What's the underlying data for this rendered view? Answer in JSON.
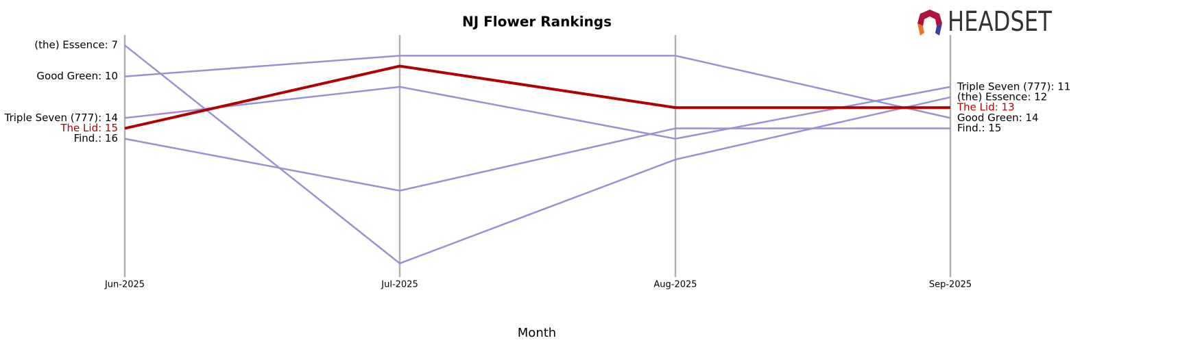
{
  "chart_data": {
    "type": "bump",
    "title": "NJ Flower Rankings",
    "x_label": "Month",
    "logo": "HEADSET",
    "categories": [
      "Jun-2025",
      "Jul-2025",
      "Aug-2025",
      "Sep-2025"
    ],
    "ylim": [
      29,
      6
    ],
    "inverted_y": true,
    "highlight": "The Lid",
    "series": [
      {
        "name": "(the) Essence",
        "color": "#9b8fd8",
        "values": [
          7,
          28,
          18,
          12
        ],
        "value_labels": [
          "(the) Essence: 7",
          null,
          null,
          "(the) Essence: 12"
        ]
      },
      {
        "name": "Good Green",
        "color": "#9b8fd8",
        "values": [
          10,
          8,
          8,
          14
        ],
        "value_labels": [
          "Good Green: 10",
          null,
          null,
          "Good Green: 14"
        ]
      },
      {
        "name": "Triple Seven (777)",
        "color": "#9b8fd8",
        "values": [
          14,
          11,
          16,
          11
        ],
        "value_labels": [
          "Triple Seven (777): 14",
          null,
          null,
          "Triple Seven (777): 11"
        ]
      },
      {
        "name": "Find.",
        "color": "#9b8fd8",
        "values": [
          16,
          21,
          15,
          15
        ],
        "value_labels": [
          "Find.: 16",
          null,
          null,
          "Find.: 15"
        ]
      },
      {
        "name": "The Lid",
        "color": "#b00000",
        "values": [
          15,
          9,
          13,
          13
        ],
        "value_labels": [
          "The Lid: 15",
          null,
          null,
          "The Lid: 13"
        ]
      }
    ]
  }
}
